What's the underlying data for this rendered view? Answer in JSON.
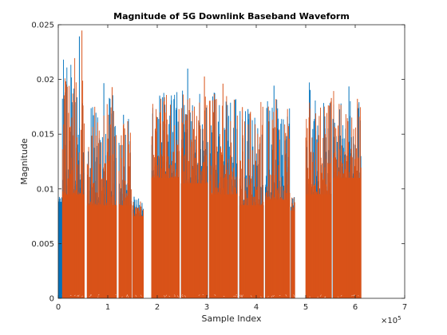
{
  "chart_data": {
    "type": "bar",
    "title": "Magnitude of 5G Downlink Baseband Waveform",
    "xlabel": "Sample Index",
    "ylabel": "Magnitude",
    "x_exponent_label": "×10",
    "x_exponent_power": "5",
    "xlim": [
      0,
      700000
    ],
    "ylim": [
      0,
      0.025
    ],
    "xticks": [
      {
        "value": 0,
        "label": "0"
      },
      {
        "value": 100000,
        "label": "1"
      },
      {
        "value": 200000,
        "label": "2"
      },
      {
        "value": 300000,
        "label": "3"
      },
      {
        "value": 400000,
        "label": "4"
      },
      {
        "value": 500000,
        "label": "5"
      },
      {
        "value": 600000,
        "label": "6"
      },
      {
        "value": 700000,
        "label": "7"
      }
    ],
    "yticks": [
      {
        "value": 0,
        "label": "0"
      },
      {
        "value": 0.005,
        "label": "0.005"
      },
      {
        "value": 0.01,
        "label": "0.01"
      },
      {
        "value": 0.015,
        "label": "0.015"
      },
      {
        "value": 0.02,
        "label": "0.02"
      },
      {
        "value": 0.025,
        "label": "0.025"
      }
    ],
    "grid": false,
    "series": [
      {
        "color": "#0072BD",
        "segments": [
          {
            "x_start": 0,
            "x_end": 8000,
            "base": 0.0088,
            "peak": 0.0095
          },
          {
            "x_start": 8000,
            "x_end": 53000,
            "base": 0.0095,
            "peak": 0.0248
          },
          {
            "x_start": 58000,
            "x_end": 118000,
            "base": 0.0085,
            "peak": 0.0205
          },
          {
            "x_start": 122000,
            "x_end": 148000,
            "base": 0.0085,
            "peak": 0.0185
          },
          {
            "x_start": 150000,
            "x_end": 172000,
            "base": 0.0075,
            "peak": 0.0095
          },
          {
            "x_start": 188000,
            "x_end": 245000,
            "base": 0.011,
            "peak": 0.0205
          },
          {
            "x_start": 248000,
            "x_end": 302000,
            "base": 0.0105,
            "peak": 0.021
          },
          {
            "x_start": 305000,
            "x_end": 362000,
            "base": 0.0095,
            "peak": 0.021
          },
          {
            "x_start": 366000,
            "x_end": 415000,
            "base": 0.0085,
            "peak": 0.0195
          },
          {
            "x_start": 418000,
            "x_end": 468000,
            "base": 0.009,
            "peak": 0.02
          },
          {
            "x_start": 470000,
            "x_end": 478000,
            "base": 0.008,
            "peak": 0.01
          },
          {
            "x_start": 500000,
            "x_end": 552000,
            "base": 0.0095,
            "peak": 0.02
          },
          {
            "x_start": 555000,
            "x_end": 612000,
            "base": 0.011,
            "peak": 0.0195
          }
        ]
      },
      {
        "color": "#D95319",
        "segments": [
          {
            "x_start": 8000,
            "x_end": 53000,
            "base": 0.0095,
            "peak": 0.0248
          },
          {
            "x_start": 58000,
            "x_end": 118000,
            "base": 0.0085,
            "peak": 0.0195
          },
          {
            "x_start": 122000,
            "x_end": 148000,
            "base": 0.0085,
            "peak": 0.018
          },
          {
            "x_start": 150000,
            "x_end": 172000,
            "base": 0.0075,
            "peak": 0.0092
          },
          {
            "x_start": 188000,
            "x_end": 245000,
            "base": 0.011,
            "peak": 0.02
          },
          {
            "x_start": 248000,
            "x_end": 302000,
            "base": 0.0105,
            "peak": 0.0205
          },
          {
            "x_start": 305000,
            "x_end": 362000,
            "base": 0.0095,
            "peak": 0.0205
          },
          {
            "x_start": 366000,
            "x_end": 415000,
            "base": 0.0085,
            "peak": 0.019
          },
          {
            "x_start": 418000,
            "x_end": 468000,
            "base": 0.009,
            "peak": 0.0195
          },
          {
            "x_start": 470000,
            "x_end": 478000,
            "base": 0.008,
            "peak": 0.0098
          },
          {
            "x_start": 500000,
            "x_end": 552000,
            "base": 0.0095,
            "peak": 0.0195
          },
          {
            "x_start": 555000,
            "x_end": 612000,
            "base": 0.011,
            "peak": 0.019
          }
        ]
      }
    ]
  }
}
